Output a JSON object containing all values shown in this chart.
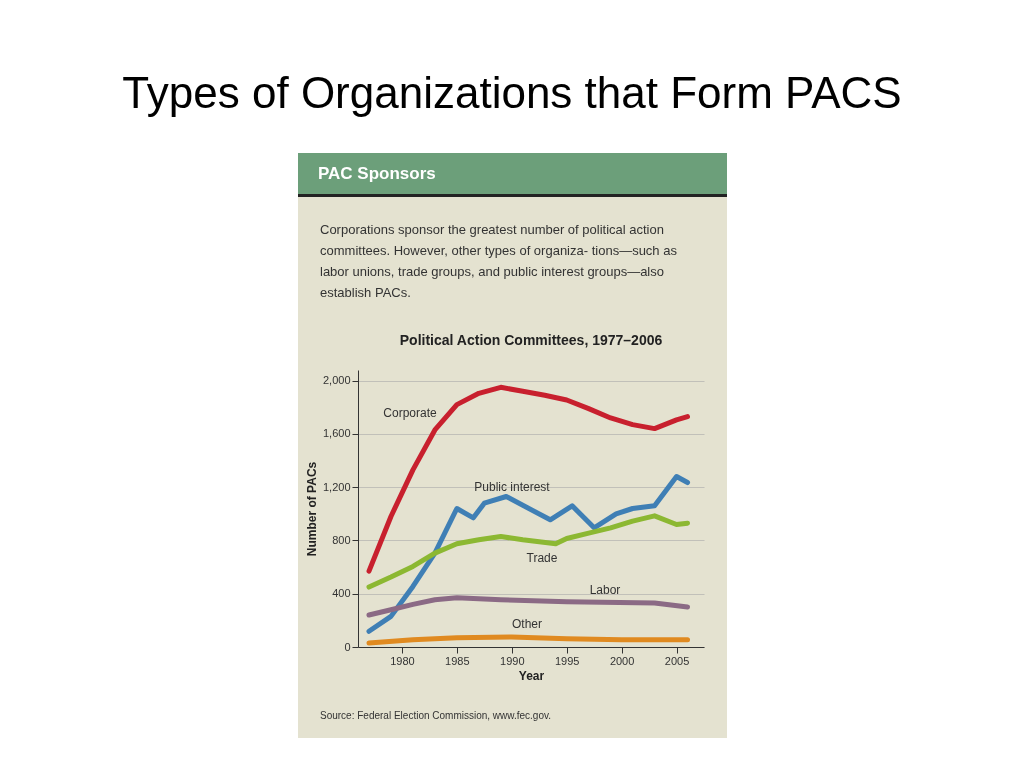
{
  "chart_data": {
    "type": "line",
    "title": "Types of Organizations that Form PACS",
    "subtitle": "Political Action Committees, 1977–2006",
    "annotations": [
      "PAC Sponsors",
      "Corporations sponsor the greatest number of political action committees. However, other types of organiza- tions—such as labor unions, trade groups, and public interest groups—also establish PACs.",
      "Source: Federal Election Commission, www.fec.gov."
    ],
    "xlabel": "Year",
    "ylabel": "Number of PACs",
    "xlim": [
      1976,
      2007.5
    ],
    "ylim": [
      0,
      2080
    ],
    "xticks": [
      1980,
      1985,
      1990,
      1995,
      2000,
      2005
    ],
    "yticks": [
      0,
      400,
      800,
      {
        "value": 1200,
        "label": "1,200"
      },
      {
        "value": 1600,
        "label": "1,600"
      },
      {
        "value": 2000,
        "label": "2,000"
      }
    ],
    "grid": "y",
    "line_style": "solid",
    "marker": "none",
    "series": [
      {
        "name": "Corporate",
        "color": "#c8202e",
        "x": [
          1977,
          1979,
          1981,
          1983,
          1985,
          1987,
          1989,
          1991,
          1993,
          1995,
          1997,
          1999,
          2001,
          2003,
          2005,
          2006
        ],
        "values": [
          570,
          980,
          1330,
          1630,
          1820,
          1905,
          1950,
          1920,
          1890,
          1855,
          1790,
          1720,
          1670,
          1640,
          1705,
          1730
        ]
      },
      {
        "name": "Public interest",
        "color": "#3f7fb5",
        "x": [
          1977,
          1979,
          1981,
          1983,
          1985,
          1986.5,
          1987.5,
          1989.5,
          1993.5,
          1995.5,
          1997.5,
          1999.5,
          2001,
          2003,
          2005,
          2006
        ],
        "values": [
          118,
          230,
          455,
          705,
          1040,
          970,
          1080,
          1130,
          955,
          1060,
          895,
          1000,
          1040,
          1060,
          1280,
          1235
        ]
      },
      {
        "name": "Trade",
        "color": "#8cb832",
        "x": [
          1977,
          1979,
          1981,
          1983,
          1985,
          1987,
          1989,
          1991,
          1994,
          1995,
          1997,
          1999,
          2001,
          2003,
          2005,
          2006
        ],
        "values": [
          450,
          525,
          605,
          705,
          775,
          805,
          830,
          805,
          775,
          815,
          855,
          895,
          945,
          985,
          920,
          930
        ]
      },
      {
        "name": "Labor",
        "color": "#8b6a85",
        "x": [
          1977,
          1979,
          1981,
          1983,
          1985,
          1989,
          1995,
          2003,
          2006
        ],
        "values": [
          240,
          280,
          320,
          355,
          370,
          355,
          340,
          330,
          300
        ]
      },
      {
        "name": "Other",
        "color": "#e08a20",
        "x": [
          1977,
          1981,
          1985,
          1990,
          1995,
          2000,
          2006
        ],
        "values": [
          30,
          55,
          70,
          75,
          62,
          55,
          55
        ]
      }
    ]
  }
}
